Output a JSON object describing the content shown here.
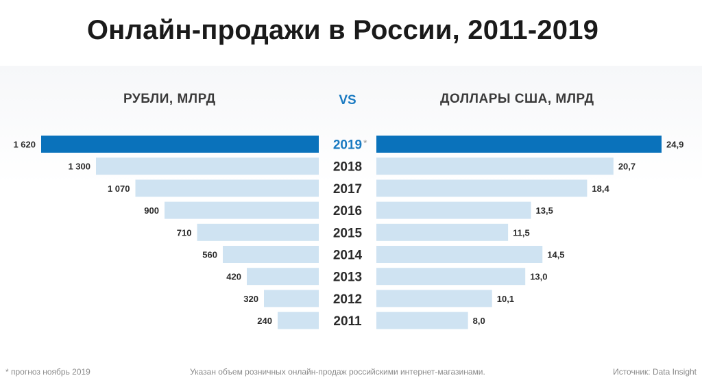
{
  "title": "Онлайн-продажи в России, 2011-2019",
  "vs_label": "VS",
  "footer": {
    "forecast_note": "* прогноз ноябрь 2019",
    "description": "Указан объем розничных онлайн-продаж российскими интернет-магазинами.",
    "source": "Источник: Data Insight"
  },
  "colors": {
    "highlight": "#0a72bb",
    "bar": "#cfe3f2",
    "year_highlight": "#1a7ac1",
    "year": "#2b2b2b"
  },
  "chart_data": [
    {
      "type": "bar",
      "orientation": "horizontal",
      "direction": "right-to-left",
      "title": "РУБЛИ, МЛРД",
      "categories": [
        "2019",
        "2018",
        "2017",
        "2016",
        "2015",
        "2014",
        "2013",
        "2012",
        "2011"
      ],
      "category_markers": [
        "*",
        "",
        "",
        "",
        "",
        "",
        "",
        "",
        ""
      ],
      "values": [
        1620,
        1300,
        1070,
        900,
        710,
        560,
        420,
        320,
        240
      ],
      "value_labels": [
        "1 620",
        "1 300",
        "1 070",
        "900",
        "710",
        "560",
        "420",
        "320",
        "240"
      ],
      "highlight_category": "2019"
    },
    {
      "type": "bar",
      "orientation": "horizontal",
      "direction": "left-to-right",
      "title": "ДОЛЛАРЫ США, МЛРД",
      "categories": [
        "2019",
        "2018",
        "2017",
        "2016",
        "2015",
        "2014",
        "2013",
        "2012",
        "2011"
      ],
      "values": [
        24.9,
        20.7,
        18.4,
        13.5,
        11.5,
        14.5,
        13.0,
        10.1,
        8.0
      ],
      "value_labels": [
        "24,9",
        "20,7",
        "18,4",
        "13,5",
        "11,5",
        "14,5",
        "13,0",
        "10,1",
        "8,0"
      ],
      "highlight_category": "2019"
    }
  ]
}
